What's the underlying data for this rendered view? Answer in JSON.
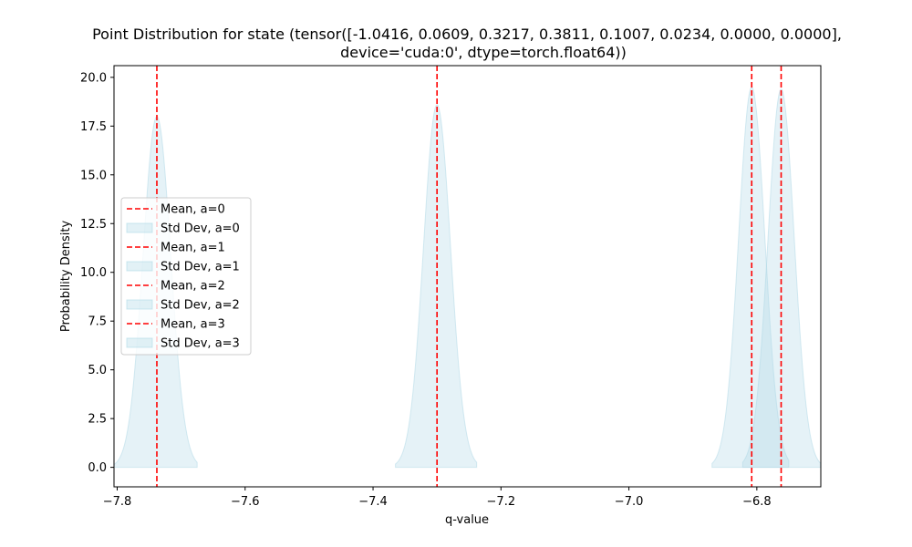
{
  "chart_data": {
    "type": "area",
    "title_lines": [
      "Point Distribution for state (tensor([-1.0416,  0.0609,  0.3217,  0.3811,  0.1007,  0.0234,  0.0000,  0.0000],",
      "device='cuda:0', dtype=torch.float64))"
    ],
    "xlabel": "q-value",
    "ylabel": "Probability Density",
    "xlim": [
      -7.805,
      -6.7
    ],
    "ylim": [
      -1.0,
      20.6
    ],
    "xticks": [
      -7.8,
      -7.6,
      -7.4,
      -7.2,
      -7.0,
      -6.8
    ],
    "xtick_labels": [
      "−7.8",
      "−7.6",
      "−7.4",
      "−7.2",
      "−7.0",
      "−6.8"
    ],
    "yticks": [
      0.0,
      2.5,
      5.0,
      7.5,
      10.0,
      12.5,
      15.0,
      17.5,
      20.0
    ],
    "ytick_labels": [
      "0.0",
      "2.5",
      "5.0",
      "7.5",
      "10.0",
      "12.5",
      "15.0",
      "17.5",
      "20.0"
    ],
    "grid": false,
    "legend_position": "center-left",
    "mean_color": "#ff0000",
    "fill_color": "#add8e6",
    "series": [
      {
        "action": 0,
        "mean": -7.738,
        "std": 0.0216,
        "peak": 18.0,
        "x_range": [
          -7.805,
          -7.675
        ],
        "legend_mean": "Mean, a=0",
        "legend_std": "Std Dev, a=0"
      },
      {
        "action": 1,
        "mean": -7.3,
        "std": 0.0212,
        "peak": 18.6,
        "x_range": [
          -7.365,
          -7.238
        ],
        "legend_mean": "Mean, a=1",
        "legend_std": "Std Dev, a=1"
      },
      {
        "action": 2,
        "mean": -6.808,
        "std": 0.0205,
        "peak": 19.5,
        "x_range": [
          -6.87,
          -6.75
        ],
        "legend_mean": "Mean, a=2",
        "legend_std": "Std Dev, a=2"
      },
      {
        "action": 3,
        "mean": -6.762,
        "std": 0.0205,
        "peak": 19.4,
        "x_range": [
          -6.822,
          -6.7
        ],
        "legend_mean": "Mean, a=3",
        "legend_std": "Std Dev, a=3"
      }
    ]
  }
}
